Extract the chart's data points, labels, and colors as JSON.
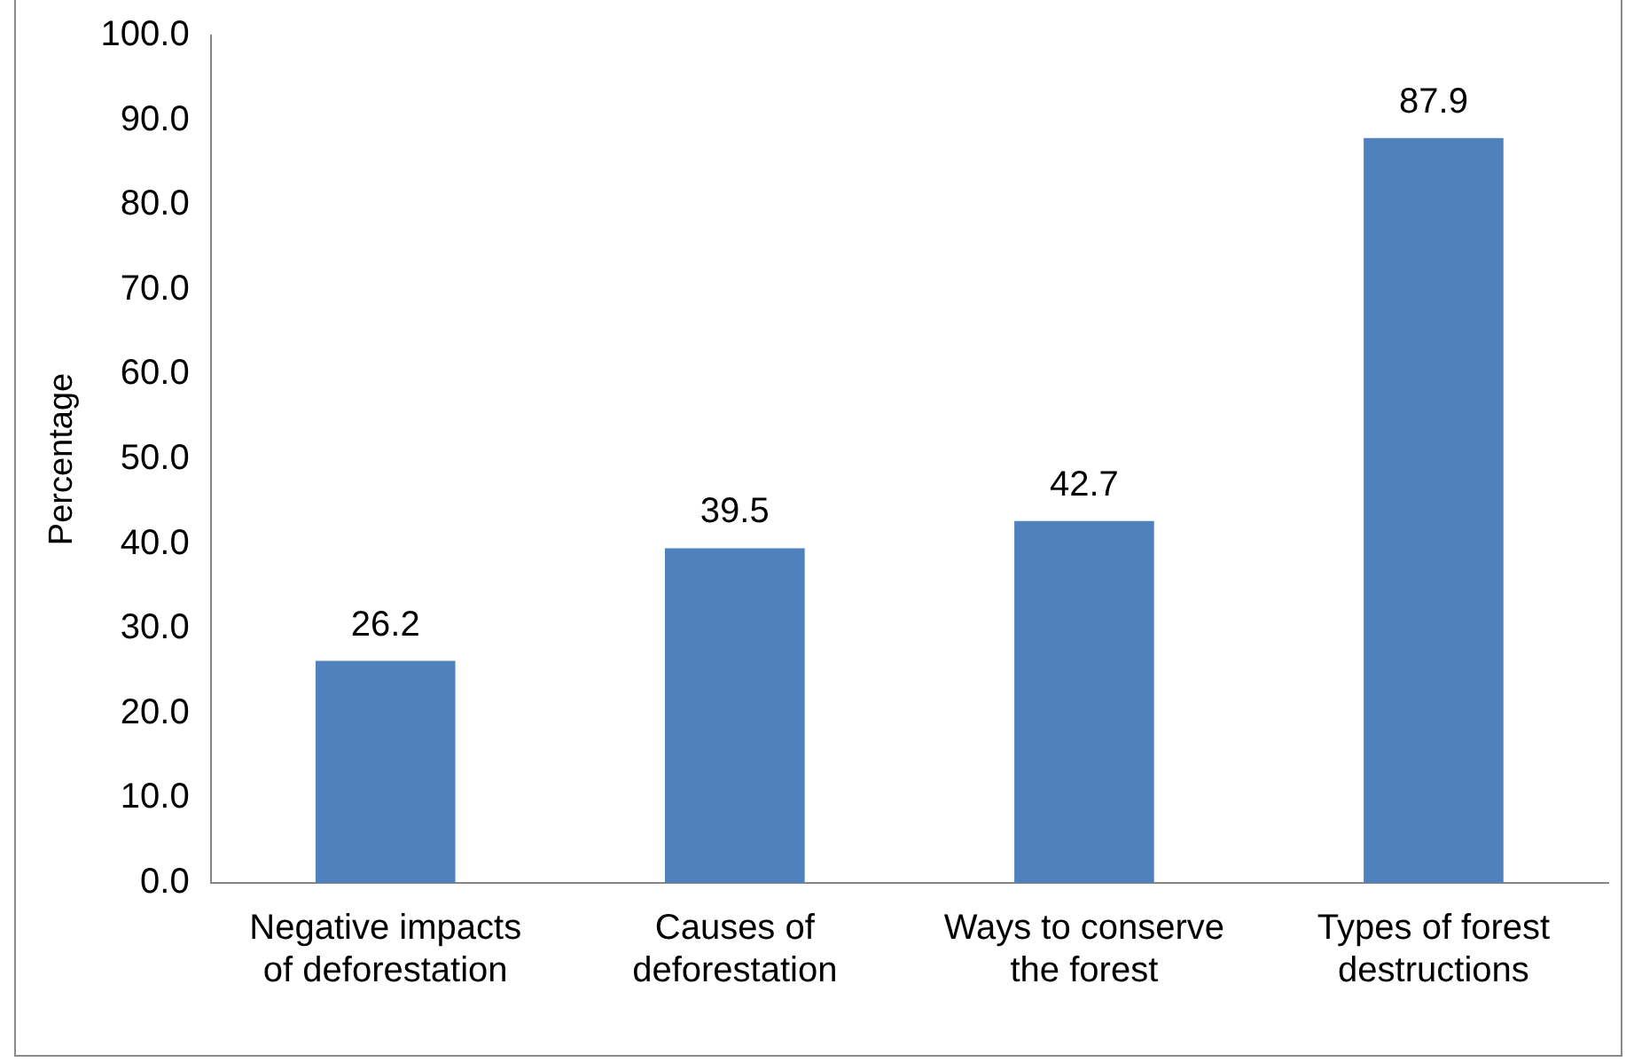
{
  "chart_data": {
    "type": "bar",
    "ylabel": "Percentage",
    "categories": [
      "Negative impacts of deforestation",
      "Causes of deforestation",
      "Ways to conserve the forest",
      "Types of forest destructions"
    ],
    "values": [
      26.2,
      39.5,
      42.7,
      87.9
    ],
    "color": "#4f81bd",
    "ylim": [
      0,
      100
    ],
    "yticks": [
      {
        "value": 0,
        "label": "0.0"
      },
      {
        "value": 10,
        "label": "10.0"
      },
      {
        "value": 20,
        "label": "20.0"
      },
      {
        "value": 30,
        "label": "30.0"
      },
      {
        "value": 40,
        "label": "40.0"
      },
      {
        "value": 50,
        "label": "50.0"
      },
      {
        "value": 60,
        "label": "60.0"
      },
      {
        "value": 70,
        "label": "70.0"
      },
      {
        "value": 80,
        "label": "80.0"
      },
      {
        "value": 90,
        "label": "90.0"
      },
      {
        "value": 100,
        "label": "100.0"
      }
    ],
    "grid": false,
    "legend": false,
    "data_labels": true
  }
}
